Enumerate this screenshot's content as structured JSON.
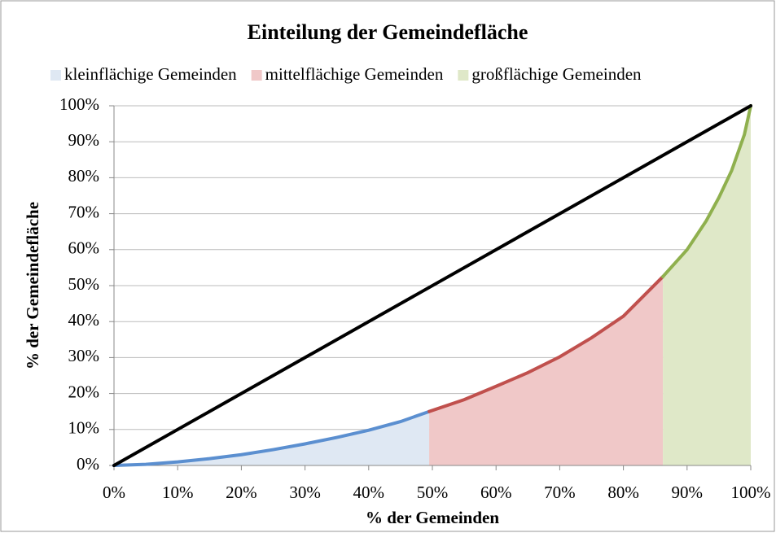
{
  "chart_data": {
    "type": "area",
    "title": "Einteilung der Gemeindefläche",
    "xlabel": "% der Gemeinden",
    "ylabel": "% der Gemeindefläche",
    "xlim": [
      0,
      100
    ],
    "ylim": [
      0,
      100
    ],
    "xticks": [
      {
        "value": 0,
        "label": "0%"
      },
      {
        "value": 10,
        "label": "10%"
      },
      {
        "value": 20,
        "label": "20%"
      },
      {
        "value": 30,
        "label": "30%"
      },
      {
        "value": 40,
        "label": "40%"
      },
      {
        "value": 50,
        "label": "50%"
      },
      {
        "value": 60,
        "label": "60%"
      },
      {
        "value": 70,
        "label": "70%"
      },
      {
        "value": 80,
        "label": "80%"
      },
      {
        "value": 90,
        "label": "90%"
      },
      {
        "value": 100,
        "label": "100%"
      }
    ],
    "yticks": [
      {
        "value": 0,
        "label": "0%"
      },
      {
        "value": 10,
        "label": "10%"
      },
      {
        "value": 20,
        "label": "20%"
      },
      {
        "value": 30,
        "label": "30%"
      },
      {
        "value": 40,
        "label": "40%"
      },
      {
        "value": 50,
        "label": "50%"
      },
      {
        "value": 60,
        "label": "60%"
      },
      {
        "value": 70,
        "label": "70%"
      },
      {
        "value": 80,
        "label": "80%"
      },
      {
        "value": 90,
        "label": "90%"
      },
      {
        "value": 100,
        "label": "100%"
      }
    ],
    "grid": true,
    "legend": "top",
    "series": [
      {
        "name": "kleinflächige Gemeinden",
        "color": "#5b8fd0",
        "fill": "#dfe8f3",
        "x": [
          0,
          5,
          10,
          15,
          20,
          25,
          30,
          35,
          40,
          45,
          49.5
        ],
        "values": [
          0,
          0.3,
          1,
          1.9,
          3,
          4.4,
          6,
          7.8,
          9.8,
          12.2,
          15
        ]
      },
      {
        "name": "mittelflächige Gemeinden",
        "color": "#c0504d",
        "fill": "#f0c8c8",
        "x": [
          49.5,
          55,
          60,
          65,
          70,
          75,
          80,
          86.2
        ],
        "values": [
          15,
          18.3,
          22,
          25.8,
          30.2,
          35.5,
          41.5,
          52.5
        ]
      },
      {
        "name": "großflächige Gemeinden",
        "color": "#8fb04e",
        "fill": "#dfe8c8",
        "x": [
          86.2,
          90,
          93,
          95,
          97,
          99,
          100
        ],
        "values": [
          52.5,
          60,
          68,
          74.5,
          82,
          92,
          100
        ]
      },
      {
        "color": "#000000",
        "x": [
          0,
          100
        ],
        "values": [
          0,
          100
        ],
        "line_only": true
      }
    ]
  }
}
